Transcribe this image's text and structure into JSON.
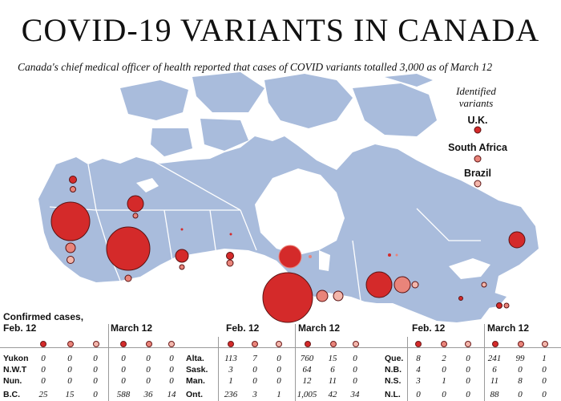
{
  "title": "COVID-19 VARIANTS IN CANADA",
  "subtitle": "Canada's chief medical officer of health reported that cases of COVID variants totalled 3,000 as of March 12",
  "legend": {
    "heading_line1": "Identified",
    "heading_line2": "variants",
    "items": [
      {
        "label": "U.K.",
        "color": "#d42a2a"
      },
      {
        "label": "South Africa",
        "color": "#e9847a"
      },
      {
        "label": "Brazil",
        "color": "#f3b6ab"
      }
    ]
  },
  "colors": {
    "land": "#a9bcdc",
    "border": "#ffffff",
    "uk": "#d42a2a",
    "sa": "#e9847a",
    "brazil": "#f3b6ab"
  },
  "table": {
    "caption_line1": "Confirmed cases,",
    "feb_label": "Feb. 12",
    "mar_label": "March 12",
    "rows": [
      {
        "prov": "Yukon",
        "feb": [
          "0",
          "0",
          "0"
        ],
        "mar": [
          "0",
          "0",
          "0"
        ]
      },
      {
        "prov": "N.W.T",
        "feb": [
          "0",
          "0",
          "0"
        ],
        "mar": [
          "0",
          "0",
          "0"
        ]
      },
      {
        "prov": "Nun.",
        "feb": [
          "0",
          "0",
          "0"
        ],
        "mar": [
          "0",
          "0",
          "0"
        ]
      },
      {
        "prov": "B.C.",
        "feb": [
          "25",
          "15",
          "0"
        ],
        "mar": [
          "588",
          "36",
          "14"
        ]
      },
      {
        "prov": "Alta.",
        "feb": [
          "113",
          "7",
          "0"
        ],
        "mar": [
          "760",
          "15",
          "0"
        ]
      },
      {
        "prov": "Sask.",
        "feb": [
          "3",
          "0",
          "0"
        ],
        "mar": [
          "64",
          "6",
          "0"
        ]
      },
      {
        "prov": "Man.",
        "feb": [
          "1",
          "0",
          "0"
        ],
        "mar": [
          "12",
          "11",
          "0"
        ]
      },
      {
        "prov": "Ont.",
        "feb": [
          "236",
          "3",
          "1"
        ],
        "mar": [
          "1,005",
          "42",
          "34"
        ]
      },
      {
        "prov": "Que.",
        "feb": [
          "8",
          "2",
          "0"
        ],
        "mar": [
          "241",
          "99",
          "1"
        ]
      },
      {
        "prov": "N.B.",
        "feb": [
          "4",
          "0",
          "0"
        ],
        "mar": [
          "6",
          "0",
          "0"
        ]
      },
      {
        "prov": "N.S.",
        "feb": [
          "3",
          "1",
          "0"
        ],
        "mar": [
          "11",
          "8",
          "0"
        ]
      },
      {
        "prov": "N.L.",
        "feb": [
          "0",
          "0",
          "0"
        ],
        "mar": [
          "88",
          "0",
          "0"
        ]
      }
    ]
  }
}
